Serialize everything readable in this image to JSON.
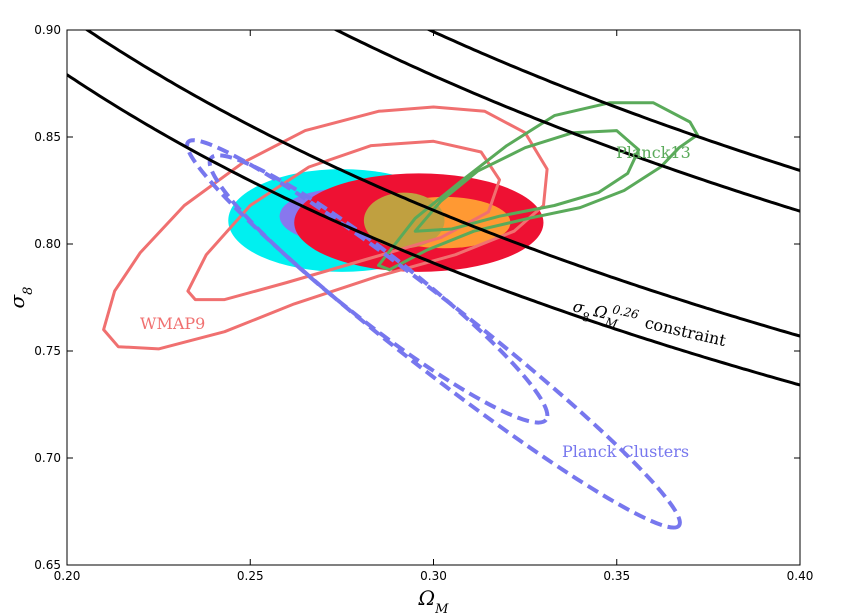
{
  "chart_data": {
    "type": "contour",
    "xlabel": "Ω",
    "xlabel_sub": "M",
    "ylabel": "σ",
    "ylabel_sub": "8",
    "xlim": [
      0.2,
      0.4
    ],
    "ylim": [
      0.65,
      0.9
    ],
    "xticks": [
      "0.20",
      "0.25",
      "0.30",
      "0.35",
      "0.40"
    ],
    "yticks": [
      "0.65",
      "0.70",
      "0.75",
      "0.80",
      "0.85",
      "0.90"
    ],
    "grid": false,
    "colors": {
      "wmap9": "#f07070",
      "planck13": "#5aaa5a",
      "planck_clusters": "#7777ee",
      "cyan": "#00f0f0",
      "purple": "#8877ee",
      "red": "#ee1133",
      "orange": "#ff9933",
      "olive": "#c0a040",
      "constraint": "#000000"
    },
    "annotations": {
      "wmap9": "WMAP9",
      "planck13": "Planck13",
      "planck_clusters": "Planck Clusters",
      "constraint_sigma": "σ",
      "constraint_sigma_sub": "8",
      "constraint_omega": "Ω",
      "constraint_omega_sub": "M",
      "constraint_exp": "0.26",
      "constraint_word": "constraint"
    },
    "constraint_curves": [
      {
        "exponent": 0.26,
        "amplitude": 0.5785
      },
      {
        "exponent": 0.26,
        "amplitude": 0.5965
      },
      {
        "exponent": 0.26,
        "amplitude": 0.6425
      },
      {
        "exponent": 0.26,
        "amplitude": 0.6575
      }
    ],
    "filled_regions": [
      {
        "name": "cyan-outer",
        "color": "cyan",
        "cx": 0.275,
        "cy": 0.811,
        "rx": 0.031,
        "ry": 0.024
      },
      {
        "name": "purple",
        "color": "purple",
        "cx": 0.276,
        "cy": 0.813,
        "rx": 0.018,
        "ry": 0.013
      },
      {
        "name": "red-outer",
        "color": "red",
        "cx": 0.296,
        "cy": 0.81,
        "rx": 0.034,
        "ry": 0.023
      },
      {
        "name": "orange-inner",
        "color": "orange",
        "cx": 0.303,
        "cy": 0.81,
        "rx": 0.018,
        "ry": 0.012
      },
      {
        "name": "olive-overlap",
        "color": "olive",
        "cx": 0.292,
        "cy": 0.811,
        "rx": 0.011,
        "ry": 0.013
      }
    ],
    "contours": {
      "planck_clusters": [
        {
          "name": "inner",
          "cx": 0.285,
          "cy": 0.779,
          "rx": 0.058,
          "ry": 0.016,
          "angle_deg": 38
        },
        {
          "name": "outer",
          "cx": 0.3,
          "cy": 0.758,
          "rx": 0.085,
          "ry": 0.016,
          "angle_deg": 38
        }
      ],
      "wmap9_outer": [
        [
          0.21,
          0.76
        ],
        [
          0.213,
          0.778
        ],
        [
          0.22,
          0.796
        ],
        [
          0.232,
          0.818
        ],
        [
          0.248,
          0.838
        ],
        [
          0.265,
          0.853
        ],
        [
          0.285,
          0.862
        ],
        [
          0.3,
          0.864
        ],
        [
          0.314,
          0.862
        ],
        [
          0.325,
          0.852
        ],
        [
          0.331,
          0.835
        ],
        [
          0.33,
          0.818
        ],
        [
          0.322,
          0.806
        ],
        [
          0.306,
          0.795
        ],
        [
          0.285,
          0.785
        ],
        [
          0.262,
          0.772
        ],
        [
          0.243,
          0.759
        ],
        [
          0.225,
          0.751
        ],
        [
          0.214,
          0.752
        ],
        [
          0.21,
          0.76
        ]
      ],
      "wmap9_inner": [
        [
          0.233,
          0.778
        ],
        [
          0.238,
          0.795
        ],
        [
          0.25,
          0.818
        ],
        [
          0.266,
          0.836
        ],
        [
          0.283,
          0.846
        ],
        [
          0.3,
          0.848
        ],
        [
          0.313,
          0.843
        ],
        [
          0.318,
          0.83
        ],
        [
          0.315,
          0.815
        ],
        [
          0.302,
          0.803
        ],
        [
          0.282,
          0.793
        ],
        [
          0.26,
          0.782
        ],
        [
          0.243,
          0.774
        ],
        [
          0.235,
          0.774
        ],
        [
          0.233,
          0.778
        ]
      ],
      "planck13_outer": [
        [
          0.285,
          0.79
        ],
        [
          0.295,
          0.812
        ],
        [
          0.308,
          0.83
        ],
        [
          0.32,
          0.846
        ],
        [
          0.333,
          0.86
        ],
        [
          0.348,
          0.866
        ],
        [
          0.36,
          0.866
        ],
        [
          0.37,
          0.857
        ],
        [
          0.372,
          0.851
        ],
        [
          0.367,
          0.845
        ],
        [
          0.362,
          0.836
        ],
        [
          0.352,
          0.825
        ],
        [
          0.34,
          0.817
        ],
        [
          0.326,
          0.812
        ],
        [
          0.311,
          0.806
        ],
        [
          0.298,
          0.797
        ],
        [
          0.288,
          0.788
        ],
        [
          0.285,
          0.79
        ]
      ],
      "planck13_inner": [
        [
          0.295,
          0.806
        ],
        [
          0.302,
          0.82
        ],
        [
          0.312,
          0.834
        ],
        [
          0.325,
          0.845
        ],
        [
          0.338,
          0.852
        ],
        [
          0.35,
          0.853
        ],
        [
          0.356,
          0.844
        ],
        [
          0.353,
          0.833
        ],
        [
          0.345,
          0.824
        ],
        [
          0.333,
          0.818
        ],
        [
          0.318,
          0.813
        ],
        [
          0.305,
          0.807
        ],
        [
          0.295,
          0.806
        ]
      ]
    }
  }
}
